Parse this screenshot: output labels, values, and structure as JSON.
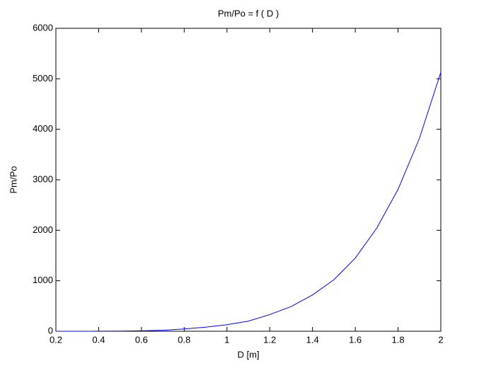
{
  "chart_data": {
    "type": "line",
    "title": "Pm/Po = f ( D )",
    "xlabel": "D [m]",
    "ylabel": "Pm/Po",
    "x": [
      0.2,
      0.3,
      0.4,
      0.5,
      0.6,
      0.7,
      0.8,
      0.9,
      1.0,
      1.1,
      1.2,
      1.3,
      1.4,
      1.5,
      1.6,
      1.7,
      1.8,
      1.9,
      2.0
    ],
    "series": [
      {
        "name": "Pm/Po",
        "color": "#0000ff",
        "values": [
          0,
          0,
          1,
          3,
          8,
          20,
          45,
          80,
          130,
          200,
          330,
          490,
          720,
          1020,
          1450,
          2040,
          2810,
          3820,
          5130
        ]
      }
    ],
    "xlim": [
      0.2,
      2
    ],
    "xticks": [
      0.2,
      0.4,
      0.6,
      0.8,
      1,
      1.2,
      1.4,
      1.6,
      1.8,
      2
    ],
    "ylim": [
      0,
      6000
    ],
    "yticks": [
      0,
      1000,
      2000,
      3000,
      4000,
      5000,
      6000
    ],
    "grid": false
  }
}
